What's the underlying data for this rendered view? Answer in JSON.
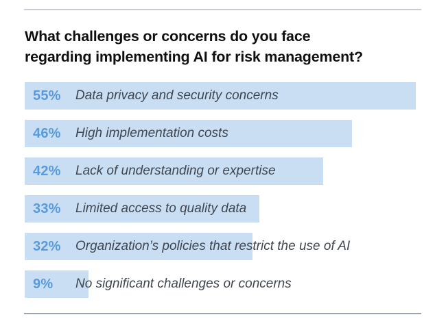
{
  "header": {
    "title_lines": [
      "What challenges or concerns do you face",
      "regarding implementing AI for risk management?"
    ]
  },
  "chart_data": {
    "type": "bar",
    "orientation": "horizontal",
    "title": "What challenges or concerns do you face regarding implementing AI for risk management?",
    "categories": [
      "Data privacy and security concerns",
      "High implementation costs",
      "Lack of understanding or expertise",
      "Limited access to quality data",
      "Organization’s policies that restrict the use of AI",
      "No significant challenges or concerns"
    ],
    "values": [
      55,
      46,
      42,
      33,
      32,
      9
    ],
    "value_labels": [
      "55%",
      "46%",
      "42%",
      "33%",
      "32%",
      "9%"
    ],
    "unit": "%",
    "xlim": [
      0,
      55
    ],
    "grid": false,
    "legend": false,
    "colors": {
      "bar": "#c9def3",
      "value_text": "#579bdd",
      "category_text": "#3f4650",
      "title_text": "#0f0f12",
      "rule_top": "#cbccd3",
      "rule_bottom": "#9aa5b1"
    }
  }
}
